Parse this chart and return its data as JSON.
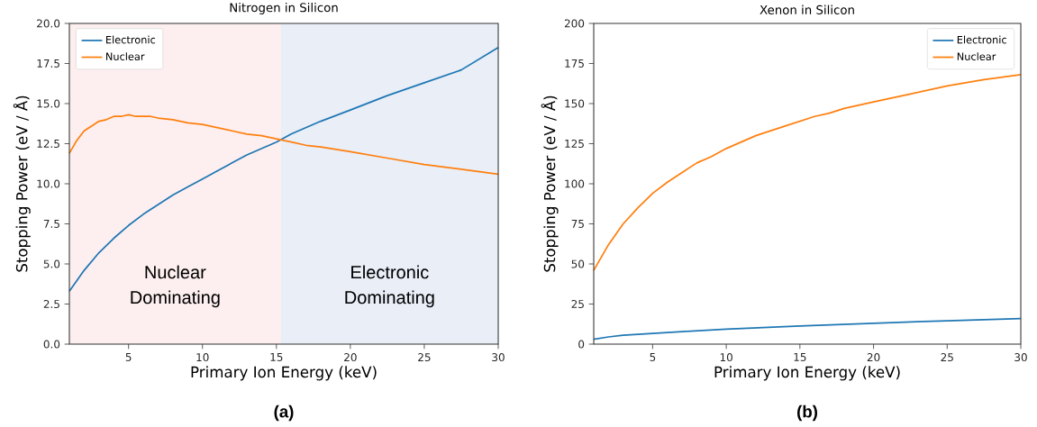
{
  "chart_data": [
    {
      "type": "line",
      "title": "Nitrogen in Silicon",
      "xlabel": "Primary Ion Energy (keV)",
      "ylabel": "Stopping Power (eV / Å)",
      "xlim": [
        1,
        30
      ],
      "xticks": [
        5,
        10,
        15,
        20,
        25,
        30
      ],
      "ylim": [
        0,
        20
      ],
      "yticks": [
        {
          "value": 0,
          "label": "0.0"
        },
        {
          "value": 2.5,
          "label": "2.5"
        },
        {
          "value": 5,
          "label": "5.0"
        },
        {
          "value": 7.5,
          "label": "7.5"
        },
        {
          "value": 10,
          "label": "10.0"
        },
        {
          "value": 12.5,
          "label": "12.5"
        },
        {
          "value": 15,
          "label": "15.0"
        },
        {
          "value": 17.5,
          "label": "17.5"
        },
        {
          "value": 20,
          "label": "20.0"
        }
      ],
      "legend": "top left",
      "series": [
        {
          "name": "Electronic",
          "color": "#1f77b4",
          "x": [
            1,
            2,
            3,
            4,
            5,
            6,
            7,
            8,
            9,
            10,
            11,
            12,
            13,
            14,
            15,
            16,
            18,
            20,
            22.5,
            25,
            27.5,
            30
          ],
          "values": [
            3.3,
            4.6,
            5.7,
            6.6,
            7.4,
            8.1,
            8.7,
            9.3,
            9.8,
            10.3,
            10.8,
            11.3,
            11.8,
            12.2,
            12.6,
            13.1,
            13.9,
            14.6,
            15.5,
            16.3,
            17.1,
            18.5
          ]
        },
        {
          "name": "Nuclear",
          "color": "#ff7f0e",
          "x": [
            1,
            1.5,
            2,
            2.5,
            3,
            3.5,
            4,
            4.5,
            5,
            5.5,
            6.5,
            7,
            8,
            9,
            10,
            11,
            12,
            13,
            14,
            15,
            16,
            17,
            18,
            20,
            22.5,
            25,
            27.5,
            30
          ],
          "values": [
            11.9,
            12.7,
            13.3,
            13.6,
            13.9,
            14.0,
            14.2,
            14.2,
            14.3,
            14.2,
            14.2,
            14.1,
            14.0,
            13.8,
            13.7,
            13.5,
            13.3,
            13.1,
            13.0,
            12.8,
            12.6,
            12.4,
            12.3,
            12.0,
            11.6,
            11.2,
            10.9,
            10.6
          ]
        }
      ],
      "bands": [
        {
          "axis": "x",
          "from": 1,
          "to": 15.3,
          "label": "Nuclear Dominating",
          "color": "#fdefef"
        },
        {
          "axis": "x",
          "from": 15.3,
          "to": 30,
          "label": "Electronic Dominating",
          "color": "#e9eef7"
        }
      ],
      "annotations": [
        "(a)"
      ]
    },
    {
      "type": "line",
      "title": "Xenon in Silicon",
      "xlabel": "Primary Ion Energy (keV)",
      "ylabel": "Stopping Power (eV / Å)",
      "xlim": [
        1,
        30
      ],
      "xticks": [
        5,
        10,
        15,
        20,
        25,
        30
      ],
      "ylim": [
        0,
        200
      ],
      "yticks": [
        0,
        25,
        50,
        75,
        100,
        125,
        150,
        175,
        200
      ],
      "legend": "top right",
      "series": [
        {
          "name": "Electronic",
          "color": "#1f77b4",
          "x": [
            1,
            2,
            3,
            5,
            7,
            10,
            15,
            20,
            25,
            30
          ],
          "values": [
            3,
            4.5,
            5.5,
            6.7,
            7.8,
            9.3,
            11.3,
            13,
            14.6,
            16
          ]
        },
        {
          "name": "Nuclear",
          "color": "#ff7f0e",
          "x": [
            1,
            2,
            3,
            4,
            5,
            6,
            7,
            8,
            9,
            10,
            12,
            14,
            16,
            17,
            18,
            20,
            22.5,
            25,
            27.5,
            30
          ],
          "values": [
            46,
            62,
            75,
            85,
            94,
            101,
            107,
            113,
            117,
            122,
            130,
            136,
            142,
            144,
            147,
            151,
            156,
            161,
            165,
            168
          ]
        }
      ],
      "annotations": [
        "(b)"
      ]
    }
  ]
}
